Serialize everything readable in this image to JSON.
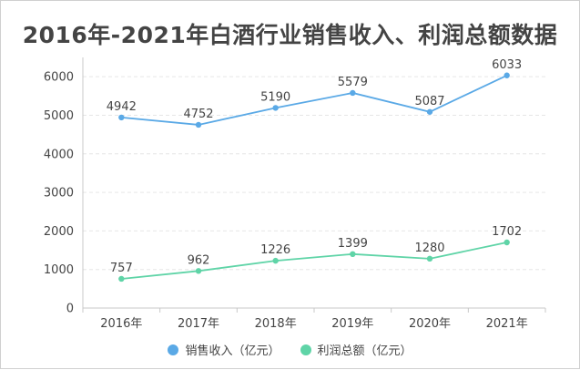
{
  "chart_data": {
    "type": "line",
    "title": "2016年-2021年白酒行业销售收入、利润总额数据",
    "categories": [
      "2016年",
      "2017年",
      "2018年",
      "2019年",
      "2020年",
      "2021年"
    ],
    "yticks": [
      "0",
      "1000",
      "2000",
      "3000",
      "4000",
      "5000",
      "6000"
    ],
    "ylim": [
      0,
      6500
    ],
    "grid": true,
    "legend_position": "bottom",
    "series": [
      {
        "name": "销售收入（亿元）",
        "color": "#5aa9e6",
        "values": [
          4942,
          4752,
          5190,
          5579,
          5087,
          6033
        ],
        "labels": [
          "4942",
          "4752",
          "5190",
          "5579",
          "5087",
          "6033"
        ]
      },
      {
        "name": "利润总额（亿元）",
        "color": "#5fd4a7",
        "values": [
          757,
          962,
          1226,
          1399,
          1280,
          1702
        ],
        "labels": [
          "757",
          "962",
          "1226",
          "1399",
          "1280",
          "1702"
        ]
      }
    ]
  }
}
